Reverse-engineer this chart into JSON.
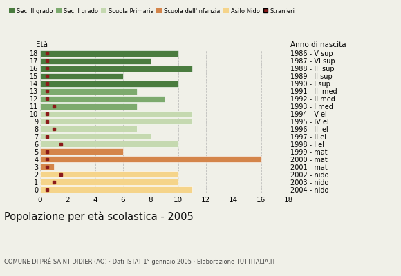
{
  "ages": [
    18,
    17,
    16,
    15,
    14,
    13,
    12,
    11,
    10,
    9,
    8,
    7,
    6,
    5,
    4,
    3,
    2,
    1,
    0
  ],
  "right_labels": [
    "1986 - V sup",
    "1987 - VI sup",
    "1988 - III sup",
    "1989 - II sup",
    "1990 - I sup",
    "1991 - III med",
    "1992 - II med",
    "1993 - I med",
    "1994 - V el",
    "1995 - IV el",
    "1996 - III el",
    "1997 - II el",
    "1998 - I el",
    "1999 - mat",
    "2000 - mat",
    "2001 - mat",
    "2002 - nido",
    "2003 - nido",
    "2004 - nido"
  ],
  "bar_values": [
    10,
    8,
    11,
    6,
    10,
    7,
    9,
    7,
    11,
    11,
    7,
    8,
    10,
    6,
    16,
    1,
    10,
    10,
    11
  ],
  "stranieri": [
    0.5,
    0.5,
    0.5,
    0.5,
    0.5,
    0.5,
    0.5,
    1,
    0.5,
    0.5,
    1,
    0.5,
    1.5,
    0.5,
    0.5,
    0.5,
    1.5,
    1,
    0.5
  ],
  "colors_by_age": {
    "18": "#4a7c3f",
    "17": "#4a7c3f",
    "16": "#4a7c3f",
    "15": "#4a7c3f",
    "14": "#4a7c3f",
    "13": "#7daa6e",
    "12": "#7daa6e",
    "11": "#7daa6e",
    "10": "#c5d9b0",
    "9": "#c5d9b0",
    "8": "#c5d9b0",
    "7": "#c5d9b0",
    "6": "#c5d9b0",
    "5": "#d4854a",
    "4": "#d4854a",
    "3": "#d4854a",
    "2": "#f5d48a",
    "1": "#f5d48a",
    "0": "#f5d48a"
  },
  "stranieri_color": "#8b1a1a",
  "background_color": "#f0f0e8",
  "title": "Popolazione per età scolastica - 2005",
  "subtitle": "COMUNE DI PRÉ-SAINT-DIDIER (AO) · Dati ISTAT 1° gennaio 2005 · Elaborazione TUTTITALIA.IT",
  "label_left": "Età",
  "label_right": "Anno di nascita",
  "xlim": [
    0,
    18
  ],
  "xticks": [
    0,
    2,
    4,
    6,
    8,
    10,
    12,
    14,
    16,
    18
  ],
  "legend_labels": [
    "Sec. II grado",
    "Sec. I grado",
    "Scuola Primaria",
    "Scuola dell'Infanzia",
    "Asilo Nido",
    "Stranieri"
  ],
  "legend_colors": [
    "#4a7c3f",
    "#7daa6e",
    "#c5d9b0",
    "#d4854a",
    "#f5d48a",
    "#8b1a1a"
  ]
}
